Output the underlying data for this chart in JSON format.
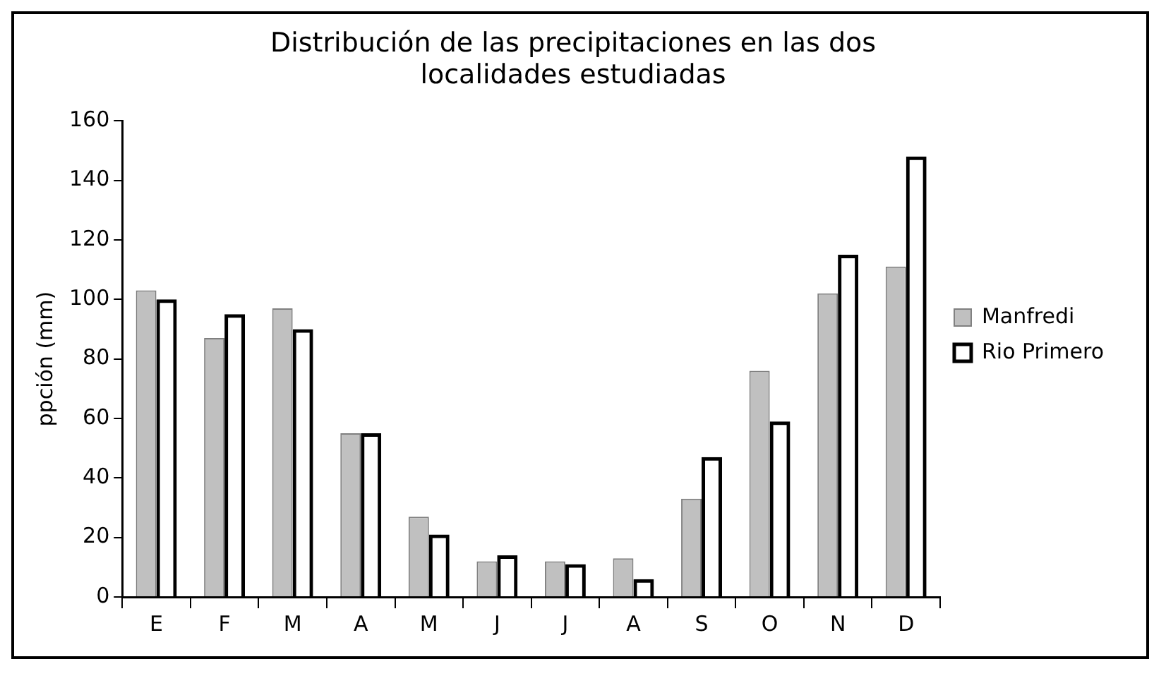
{
  "chart_data": {
    "type": "bar",
    "title": "Distribución de las precipitaciones en las dos localidades estudiadas",
    "ylabel": "ppción (mm)",
    "categories": [
      "E",
      "F",
      "M",
      "A",
      "M",
      "J",
      "J",
      "A",
      "S",
      "O",
      "N",
      "D"
    ],
    "series": [
      {
        "name": "Manfredi",
        "color": "#c0c0c0",
        "values": [
          103,
          87,
          97,
          55,
          27,
          12,
          12,
          13,
          33,
          76,
          102,
          111
        ]
      },
      {
        "name": "Rio Primero",
        "color": "#000000",
        "values": [
          100,
          95,
          90,
          55,
          21,
          14,
          11,
          6,
          47,
          59,
          115,
          148
        ]
      }
    ],
    "ylim": [
      0,
      160
    ],
    "yticks": [
      0,
      20,
      40,
      60,
      80,
      100,
      120,
      140,
      160
    ],
    "grid": false,
    "legend": "right"
  }
}
